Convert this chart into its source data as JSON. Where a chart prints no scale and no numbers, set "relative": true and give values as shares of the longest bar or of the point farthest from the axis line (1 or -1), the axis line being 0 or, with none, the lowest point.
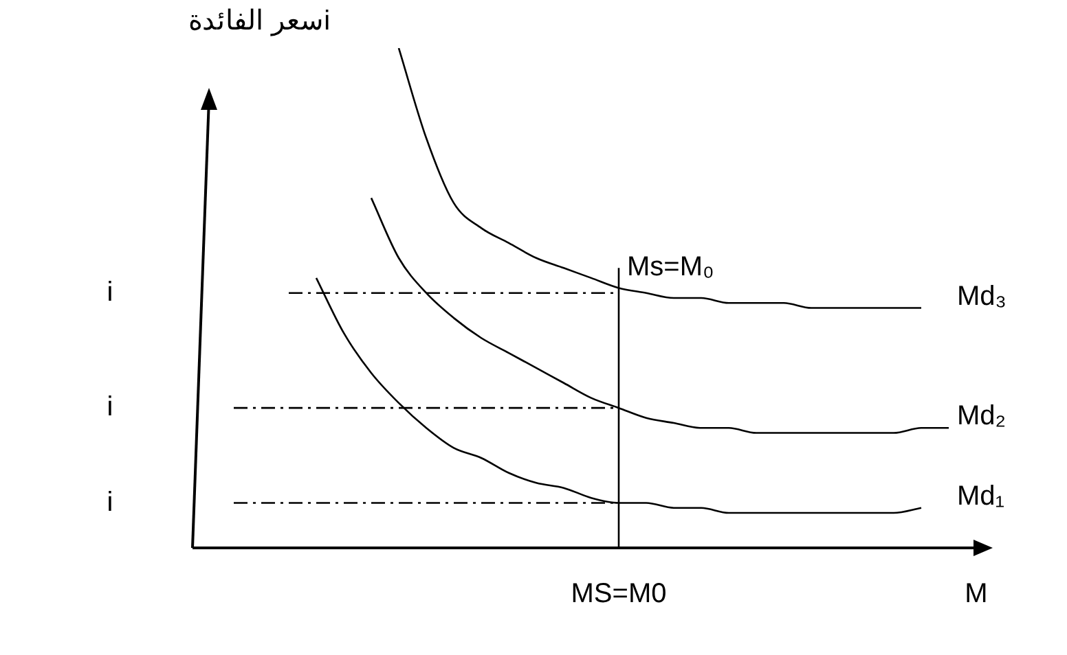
{
  "chart_data": {
    "type": "line",
    "relative": true,
    "ylabel": "سعر الفائدةi",
    "categories": [
      null,
      null,
      null,
      null,
      null,
      null,
      null,
      null,
      null,
      null,
      null,
      null,
      null,
      null,
      null,
      "MS=M0",
      null,
      null,
      null,
      null,
      null,
      null,
      null,
      null,
      null,
      null,
      null,
      null,
      "M"
    ],
    "ref_lines": [
      {
        "axis": "x",
        "value": "MS=M0",
        "label": "Ms=M₀",
        "color": "#000000"
      }
    ],
    "series": [
      {
        "name": "Md₃",
        "color": "#000000",
        "values": [
          null,
          null,
          null,
          null,
          null,
          null,
          null,
          1.0,
          0.82,
          0.69,
          0.64,
          0.61,
          0.58,
          0.56,
          0.54,
          0.52,
          0.51,
          0.5,
          0.5,
          0.49,
          0.49,
          0.49,
          0.48,
          0.48,
          0.48,
          0.48,
          0.48,
          null,
          null
        ]
      },
      {
        "name": "Md₂",
        "color": "#000000",
        "values": [
          null,
          null,
          null,
          null,
          null,
          null,
          0.7,
          0.58,
          0.51,
          0.46,
          0.42,
          0.39,
          0.36,
          0.33,
          0.3,
          0.28,
          0.26,
          0.25,
          0.24,
          0.24,
          0.23,
          0.23,
          0.23,
          0.23,
          0.23,
          0.23,
          0.24,
          0.24,
          null
        ]
      },
      {
        "name": "Md₁",
        "color": "#000000",
        "values": [
          null,
          null,
          null,
          null,
          0.54,
          0.43,
          0.35,
          0.29,
          0.24,
          0.2,
          0.18,
          0.15,
          0.13,
          0.12,
          0.1,
          0.09,
          0.09,
          0.08,
          0.08,
          0.07,
          0.07,
          0.07,
          0.07,
          0.07,
          0.07,
          0.07,
          0.08,
          null,
          null
        ]
      },
      {
        "color": "#000000",
        "line_style": "dashed",
        "values": [
          null,
          null,
          null,
          0.51,
          0.51,
          0.51,
          0.51,
          0.51,
          0.51,
          0.51,
          0.51,
          0.51,
          0.51,
          0.51,
          0.51,
          0.51,
          null,
          null,
          null,
          null,
          null,
          null,
          null,
          null,
          null,
          null,
          null,
          null,
          null
        ]
      },
      {
        "color": "#000000",
        "line_style": "dashed",
        "values": [
          null,
          0.28,
          0.28,
          0.28,
          0.28,
          0.28,
          0.28,
          0.28,
          0.28,
          0.28,
          0.28,
          0.28,
          0.28,
          0.28,
          0.28,
          0.28,
          null,
          null,
          null,
          null,
          null,
          null,
          null,
          null,
          null,
          null,
          null,
          null,
          null
        ]
      },
      {
        "color": "#000000",
        "line_style": "dashed",
        "values": [
          null,
          0.09,
          0.09,
          0.09,
          0.09,
          0.09,
          0.09,
          0.09,
          0.09,
          0.09,
          0.09,
          0.09,
          0.09,
          0.09,
          0.09,
          0.09,
          null,
          null,
          null,
          null,
          null,
          null,
          null,
          null,
          null,
          null,
          null,
          null,
          null
        ]
      }
    ],
    "annotations": [
      "i",
      "i",
      "i"
    ],
    "legend": false,
    "grid": false,
    "marker": "none"
  }
}
